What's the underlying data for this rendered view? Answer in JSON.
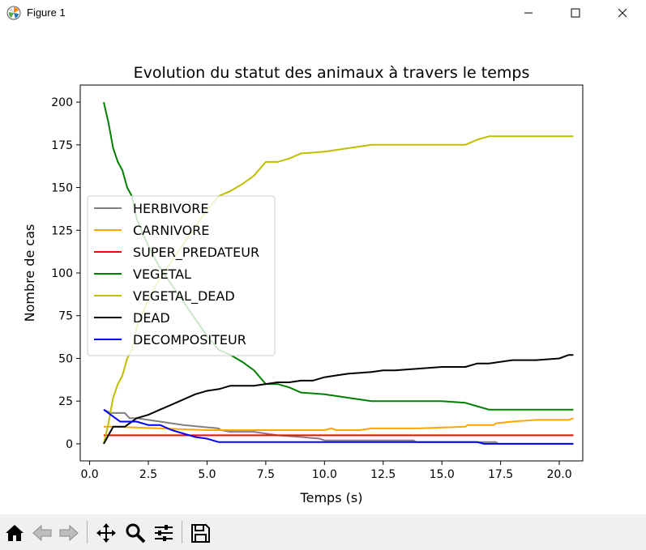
{
  "window": {
    "title": "Figure 1"
  },
  "chart_data": {
    "type": "line",
    "title": "Evolution du statut des animaux à travers le temps",
    "xlabel": "Temps (s)",
    "ylabel": "Nombre de cas",
    "xlim": [
      -0.4,
      21.0
    ],
    "ylim": [
      -10,
      210
    ],
    "xticks": [
      "0.0",
      "2.5",
      "5.0",
      "7.5",
      "10.0",
      "12.5",
      "15.0",
      "17.5",
      "20.0"
    ],
    "xtick_values": [
      0,
      2.5,
      5,
      7.5,
      10,
      12.5,
      15,
      17.5,
      20
    ],
    "yticks": [
      "0",
      "25",
      "50",
      "75",
      "100",
      "125",
      "150",
      "175",
      "200"
    ],
    "ytick_values": [
      0,
      25,
      50,
      75,
      100,
      125,
      150,
      175,
      200
    ],
    "grid": false,
    "legend": "center-left",
    "series": [
      {
        "name": "HERBIVORE",
        "color": "#808080",
        "x": [
          0.6,
          0.9,
          1.5,
          1.7,
          2.0,
          3.0,
          4.0,
          5.5,
          5.6,
          6.0,
          7.0,
          7.5,
          8.0,
          9.0,
          9.8,
          10.0,
          11.0,
          12.5,
          13.8,
          13.9,
          15.0,
          16.0,
          17.3,
          17.4,
          18.0,
          20.6
        ],
        "y": [
          20,
          18,
          18,
          15,
          15,
          13,
          11,
          9,
          8,
          7,
          7,
          6,
          5,
          4,
          3,
          2,
          2,
          2,
          2,
          1,
          1,
          1,
          1,
          0,
          0,
          0
        ]
      },
      {
        "name": "CARNIVORE",
        "color": "#ffa500",
        "x": [
          0.6,
          1.0,
          3.0,
          5.0,
          7.5,
          8.0,
          10.0,
          10.3,
          10.5,
          11.5,
          12.0,
          14.0,
          16.0,
          16.1,
          17.2,
          17.3,
          18.0,
          19.0,
          20.4,
          20.6
        ],
        "y": [
          10,
          10,
          9,
          8,
          8,
          8,
          8,
          9,
          8,
          8,
          9,
          9,
          10,
          11,
          11,
          12,
          13,
          14,
          14,
          15
        ]
      },
      {
        "name": "SUPER_PREDATEUR",
        "color": "#ff0000",
        "x": [
          0.6,
          20.6
        ],
        "y": [
          5,
          5
        ]
      },
      {
        "name": "VEGETAL",
        "color": "#008000",
        "x": [
          0.6,
          0.8,
          1.0,
          1.2,
          1.4,
          1.6,
          1.8,
          2.0,
          2.3,
          2.6,
          3.0,
          3.5,
          4.0,
          4.5,
          5.0,
          5.5,
          6.0,
          6.5,
          7.0,
          7.5,
          8.0,
          8.5,
          9.0,
          10.0,
          11.0,
          11.5,
          12.0,
          13.0,
          14.0,
          15.0,
          16.0,
          16.5,
          17.0,
          18.0,
          20.6
        ],
        "y": [
          200,
          188,
          173,
          165,
          160,
          150,
          145,
          132,
          122,
          113,
          103,
          93,
          83,
          73,
          63,
          55,
          52,
          48,
          43,
          35,
          35,
          33,
          30,
          29,
          27,
          26,
          25,
          25,
          25,
          25,
          24,
          22,
          20,
          20,
          20
        ]
      },
      {
        "name": "VEGETAL_DEAD",
        "color": "#bfbf00",
        "x": [
          0.6,
          0.8,
          1.0,
          1.2,
          1.4,
          1.6,
          1.8,
          2.0,
          2.3,
          2.6,
          3.0,
          3.5,
          4.0,
          4.5,
          5.0,
          5.5,
          6.0,
          6.5,
          7.0,
          7.5,
          8.0,
          8.5,
          9.0,
          10.0,
          11.0,
          11.5,
          12.0,
          13.0,
          14.0,
          15.0,
          16.0,
          16.5,
          17.0,
          18.0,
          20.6
        ],
        "y": [
          0,
          12,
          27,
          35,
          40,
          50,
          55,
          68,
          78,
          87,
          97,
          107,
          117,
          127,
          137,
          145,
          148,
          152,
          157,
          165,
          165,
          167,
          170,
          171,
          173,
          174,
          175,
          175,
          175,
          175,
          175,
          178,
          180,
          180,
          180
        ]
      },
      {
        "name": "DEAD",
        "color": "#000000",
        "x": [
          0.6,
          1.0,
          1.5,
          2.0,
          2.5,
          3.0,
          3.5,
          4.0,
          4.5,
          5.0,
          5.5,
          6.0,
          6.5,
          7.0,
          7.5,
          8.0,
          8.5,
          9.0,
          9.5,
          10.0,
          10.5,
          11.0,
          12.0,
          12.5,
          13.0,
          14.0,
          15.0,
          16.0,
          16.5,
          17.0,
          18.0,
          19.0,
          20.0,
          20.4,
          20.6
        ],
        "y": [
          0,
          10,
          10,
          15,
          17,
          20,
          23,
          26,
          29,
          31,
          32,
          34,
          34,
          34,
          35,
          36,
          36,
          37,
          37,
          39,
          40,
          41,
          42,
          43,
          43,
          44,
          45,
          45,
          47,
          47,
          49,
          49,
          50,
          52,
          52
        ]
      },
      {
        "name": "DECOMPOSITEUR",
        "color": "#0000ff",
        "x": [
          0.6,
          1.0,
          1.3,
          2.0,
          2.5,
          3.0,
          3.5,
          4.0,
          4.5,
          5.0,
          5.5,
          6.0,
          8.0,
          10.0,
          12.0,
          14.0,
          16.0,
          16.5,
          16.8,
          17.0,
          20.6
        ],
        "y": [
          20,
          16,
          13,
          13,
          11,
          11,
          8,
          6,
          4,
          3,
          1,
          1,
          1,
          1,
          1,
          1,
          1,
          1,
          0,
          0,
          0
        ]
      }
    ]
  }
}
